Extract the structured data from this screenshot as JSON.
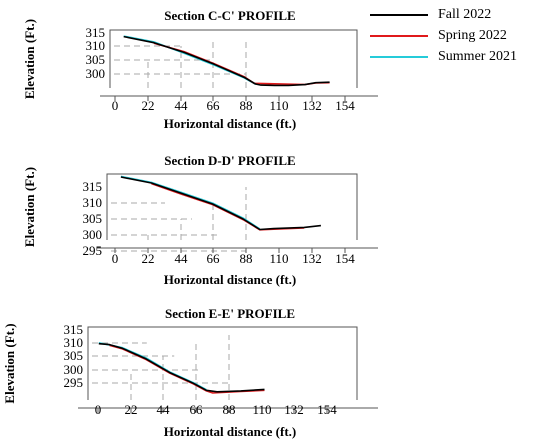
{
  "legend": {
    "items": [
      {
        "label": "Fall 2022",
        "color": "#000000"
      },
      {
        "label": "Spring 2022",
        "color": "#e0191b"
      },
      {
        "label": "Summer 2021",
        "color": "#25cbd9"
      }
    ]
  },
  "chart_data": [
    {
      "type": "line",
      "title": "Section C-C' PROFILE",
      "xlabel": "Horizontal distance (ft.)",
      "ylabel": "Elevation (Ft.)",
      "xlim": [
        -10,
        170
      ],
      "ylim": [
        295,
        317
      ],
      "x_ticks": [
        "0",
        "22",
        "44",
        "66",
        "88",
        "110",
        "132",
        "154"
      ],
      "y_ticks": [
        "315",
        "310",
        "305",
        "300"
      ],
      "grid": "dashed guide lines",
      "series": [
        {
          "name": "Fall 2022",
          "color": "#000000",
          "x": [
            0,
            22,
            44,
            66,
            88,
            96,
            100,
            110,
            120,
            132,
            140,
            150
          ],
          "y": [
            314.5,
            312.2,
            308.5,
            304.0,
            299.0,
            296.5,
            296.1,
            296.0,
            296.0,
            296.3,
            297.0,
            297.2
          ]
        },
        {
          "name": "Spring 2022",
          "color": "#e0191b",
          "x": [
            22,
            44,
            66,
            88,
            95,
            132,
            140,
            150
          ],
          "y": [
            312.0,
            308.8,
            304.2,
            299.2,
            296.8,
            296.3,
            296.9,
            297.0
          ]
        },
        {
          "name": "Summer 2021",
          "color": "#25cbd9",
          "x": [
            0,
            22,
            44,
            66,
            88,
            96
          ],
          "y": [
            314.7,
            312.5,
            308.2,
            303.7,
            298.8,
            296.4
          ]
        }
      ]
    },
    {
      "type": "line",
      "title": "Section D-D' PROFILE",
      "xlabel": "Horizontal distance (ft.)",
      "ylabel": "Elevation (Ft.)",
      "xlim": [
        -10,
        170
      ],
      "ylim": [
        292,
        314
      ],
      "x_ticks": [
        "0",
        "22",
        "44",
        "66",
        "88",
        "110",
        "132",
        "154"
      ],
      "y_ticks": [
        "315",
        "310",
        "305",
        "300",
        "295"
      ],
      "grid": "dashed guide lines",
      "series": [
        {
          "name": "Fall 2022",
          "color": "#000000",
          "x": [
            0,
            22,
            44,
            66,
            88,
            100,
            110,
            132,
            144
          ],
          "y": [
            313.0,
            311.0,
            307.5,
            304.0,
            299.0,
            295.5,
            295.8,
            296.2,
            296.8
          ]
        },
        {
          "name": "Spring 2022",
          "color": "#e0191b",
          "x": [
            22,
            44,
            66,
            88,
            100,
            110,
            132
          ],
          "y": [
            310.8,
            307.2,
            303.8,
            298.8,
            295.4,
            295.6,
            296.0
          ]
        },
        {
          "name": "Summer 2021",
          "color": "#25cbd9",
          "x": [
            0,
            22,
            44,
            66,
            88,
            100
          ],
          "y": [
            313.2,
            311.2,
            307.8,
            304.3,
            299.3,
            295.7
          ]
        }
      ]
    },
    {
      "type": "line",
      "title": "Section E-E' PROFILE",
      "xlabel": "Horizontal distance (ft.)",
      "ylabel": "Elevation (Ft.)",
      "xlim": [
        -10,
        240
      ],
      "ylim": [
        292,
        316
      ],
      "x_ticks": [
        "0",
        "22",
        "44",
        "66",
        "88",
        "110",
        "132",
        "154"
      ],
      "y_ticks": [
        "315",
        "310",
        "305",
        "300",
        "295"
      ],
      "grid": "dashed guide lines",
      "series": [
        {
          "name": "Fall 2022",
          "color": "#000000",
          "x": [
            0,
            10,
            22,
            44,
            66,
            88,
            100,
            110,
            132,
            150,
            154
          ],
          "y": [
            310.5,
            310.2,
            309.0,
            305.5,
            301.0,
            297.5,
            295.2,
            294.7,
            295.0,
            295.4,
            295.5
          ]
        },
        {
          "name": "Spring 2022",
          "color": "#e0191b",
          "x": [
            10,
            22,
            44,
            66,
            88,
            100,
            106,
            110,
            132,
            154
          ],
          "y": [
            310.0,
            308.8,
            305.3,
            300.8,
            297.3,
            295.0,
            294.3,
            294.4,
            294.8,
            295.2
          ]
        },
        {
          "name": "Summer 2021",
          "color": "#25cbd9",
          "x": [
            0,
            22,
            44,
            66,
            88,
            100
          ],
          "y": [
            310.8,
            309.2,
            305.8,
            301.2,
            297.7,
            295.4
          ]
        }
      ]
    }
  ]
}
